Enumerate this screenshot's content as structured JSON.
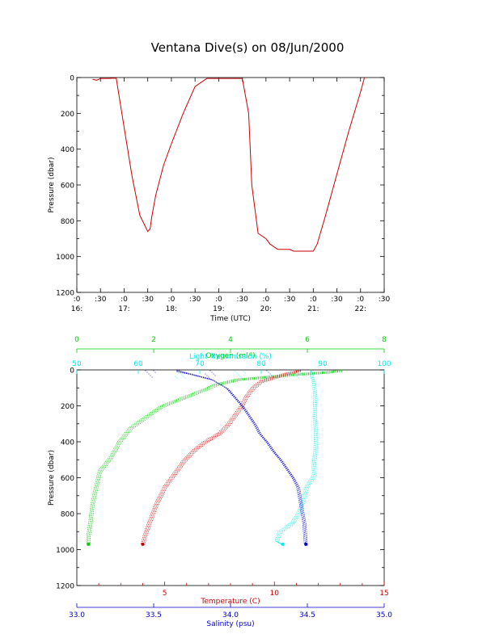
{
  "title": "Ventana Dive(s) on 08/Jun/2000",
  "chart_data": [
    {
      "type": "line",
      "name": "pressure-time",
      "xlabel": "Time (UTC)",
      "ylabel": "Pressure (dbar)",
      "xlim": [
        "16:00",
        "22:30"
      ],
      "ylim": [
        1200,
        0
      ],
      "yticks": [
        0,
        200,
        400,
        600,
        800,
        1000,
        1200
      ],
      "xticks_top": [
        ":0",
        ":30",
        ":0",
        ":30",
        ":0",
        ":30",
        ":0",
        ":30",
        ":0",
        ":30",
        ":0",
        ":30",
        ":0",
        ":30"
      ],
      "xticks_bottom": [
        "16:",
        "17:",
        "18:",
        "19:",
        "20:",
        "21:",
        "22:"
      ],
      "color": "#cc0000",
      "series": [
        {
          "x": [
            "16:20",
            "16:25",
            "16:28",
            "16:30",
            "16:35",
            "16:40",
            "16:50",
            "17:00",
            "17:10",
            "17:20",
            "17:30",
            "17:33",
            "17:35",
            "17:40",
            "17:50",
            "18:00",
            "18:15",
            "18:30",
            "18:45",
            "19:00",
            "19:15",
            "19:30",
            "19:38",
            "19:40",
            "19:42",
            "19:50",
            "20:00",
            "20:05",
            "20:15",
            "20:25",
            "20:30",
            "20:35",
            "20:45",
            "20:55",
            "21:00",
            "21:05",
            "21:15",
            "21:30",
            "21:45",
            "22:00",
            "22:05"
          ],
          "y": [
            10,
            15,
            10,
            5,
            5,
            5,
            3,
            280,
            550,
            770,
            860,
            845,
            780,
            660,
            490,
            370,
            200,
            50,
            5,
            5,
            5,
            5,
            200,
            400,
            600,
            870,
            900,
            930,
            960,
            960,
            960,
            970,
            970,
            970,
            970,
            930,
            780,
            540,
            300,
            80,
            0
          ]
        }
      ]
    },
    {
      "type": "scatter",
      "name": "profiles",
      "ylabel": "Pressure (dbar)",
      "ylim": [
        1200,
        0
      ],
      "yticks": [
        0,
        200,
        400,
        600,
        800,
        1000,
        1200
      ],
      "axes": {
        "oxygen": {
          "label": "Oxygen (ml/l)",
          "range": [
            0,
            8
          ],
          "ticks": [
            0,
            2,
            4,
            6,
            8
          ],
          "color": "#00cc00"
        },
        "transmission": {
          "label": "Light Transmission (%)",
          "range": [
            50,
            100
          ],
          "ticks": [
            50,
            60,
            70,
            80,
            90,
            100
          ],
          "color": "#00eeee"
        },
        "temperature": {
          "label": "Temperature (C)",
          "range": [
            1,
            15
          ],
          "ticks": [
            5,
            10,
            15
          ],
          "color": "#cc0000"
        },
        "salinity": {
          "label": "Salinity (psu)",
          "range": [
            33.0,
            35.0
          ],
          "ticks": [
            "33.0",
            "33.5",
            "34.0",
            "34.5",
            "35.0"
          ],
          "color": "#0000cc"
        }
      },
      "series": [
        {
          "name": "Oxygen",
          "axis": "oxygen",
          "color": "#00cc00",
          "x": [
            6.9,
            6.5,
            5.8,
            4.2,
            3.6,
            3.4,
            2.8,
            2.2,
            1.8,
            1.4,
            1.1,
            0.9,
            0.6,
            0.5,
            0.4,
            0.35,
            0.3,
            0.3
          ],
          "y": [
            0,
            10,
            20,
            50,
            80,
            100,
            150,
            200,
            260,
            320,
            400,
            480,
            560,
            650,
            750,
            850,
            920,
            970
          ]
        },
        {
          "name": "Light Transmission",
          "axis": "transmission",
          "color": "#00eeee",
          "x": [
            88.0,
            88.3,
            88.2,
            88.6,
            88.8,
            88.7,
            88.9,
            88.8,
            88.5,
            88.7,
            87.5,
            87.0,
            86.5,
            86.0,
            85.0,
            83.0,
            82.5,
            83.5
          ],
          "y": [
            0,
            10,
            30,
            70,
            150,
            250,
            350,
            450,
            550,
            580,
            640,
            700,
            760,
            800,
            850,
            900,
            950,
            970
          ]
        },
        {
          "name": "Temperature",
          "axis": "temperature",
          "color": "#cc0000",
          "x": [
            11.2,
            10.5,
            9.4,
            9.0,
            8.7,
            8.5,
            8.2,
            7.9,
            7.5,
            6.8,
            6.3,
            5.9,
            5.6,
            5.3,
            5.0,
            4.6,
            4.3,
            4.1,
            4.0
          ],
          "y": [
            0,
            20,
            60,
            100,
            150,
            200,
            250,
            300,
            350,
            400,
            450,
            500,
            550,
            600,
            650,
            750,
            850,
            920,
            970
          ]
        },
        {
          "name": "Salinity",
          "axis": "salinity",
          "color": "#0000cc",
          "x": [
            33.65,
            33.72,
            33.88,
            33.98,
            34.03,
            34.08,
            34.12,
            34.16,
            34.19,
            34.24,
            34.28,
            34.33,
            34.37,
            34.41,
            34.44,
            34.46,
            34.48,
            34.49
          ],
          "y": [
            0,
            15,
            50,
            100,
            150,
            200,
            250,
            300,
            350,
            400,
            450,
            500,
            550,
            600,
            650,
            750,
            850,
            970
          ]
        }
      ]
    }
  ]
}
